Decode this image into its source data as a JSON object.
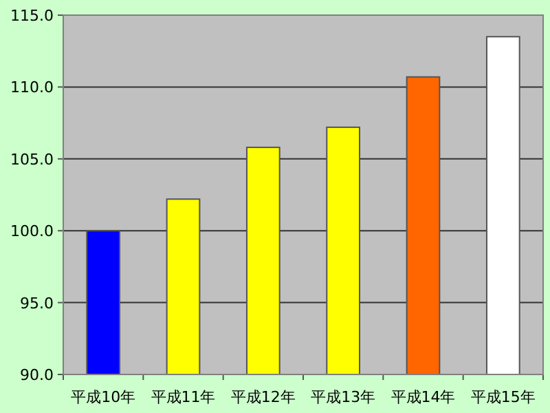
{
  "chart_data": {
    "type": "bar",
    "categories": [
      "平成10年",
      "平成11年",
      "平成12年",
      "平成13年",
      "平成14年",
      "平成15年"
    ],
    "values": [
      100.0,
      102.2,
      105.8,
      107.2,
      110.7,
      113.5
    ],
    "colors": [
      "#0000ff",
      "#ffff00",
      "#ffff00",
      "#ffff00",
      "#ff6600",
      "#ffffff"
    ],
    "ylim": [
      90,
      115
    ],
    "yticks": [
      {
        "value": 90,
        "label": "90.0"
      },
      {
        "value": 95,
        "label": "95.0"
      },
      {
        "value": 100,
        "label": "100.0"
      },
      {
        "value": 105,
        "label": "105.0"
      },
      {
        "value": 110,
        "label": "110.0"
      },
      {
        "value": 115,
        "label": "115.0"
      }
    ],
    "grid": "y"
  }
}
